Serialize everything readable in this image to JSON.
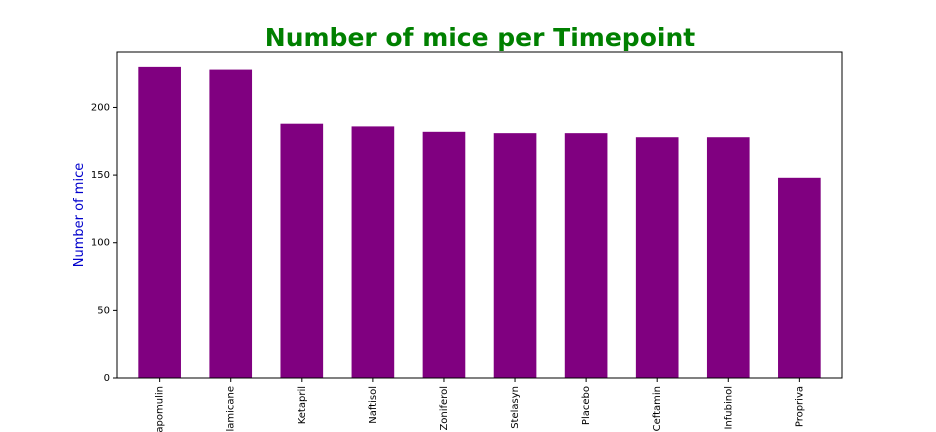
{
  "chart_data": {
    "type": "bar",
    "title": "Number of mice per Timepoint",
    "xlabel": "",
    "ylabel": "Number of mice",
    "categories": [
      "apomulin",
      "lamicane",
      "Ketapril",
      "Naftisol",
      "Zoniferol",
      "Stelasyn",
      "Placebo",
      "Ceftamin",
      "Infubinol",
      "Propriva"
    ],
    "values": [
      230,
      228,
      188,
      186,
      182,
      181,
      181,
      178,
      178,
      148
    ],
    "ylim": [
      0,
      241
    ],
    "yticks": [
      0,
      50,
      100,
      150,
      200
    ],
    "grid": false,
    "legend": "none"
  },
  "colors": {
    "bar": "#800080",
    "title": "#008000",
    "ylabel": "#0000cc",
    "axis": "#000000"
  }
}
